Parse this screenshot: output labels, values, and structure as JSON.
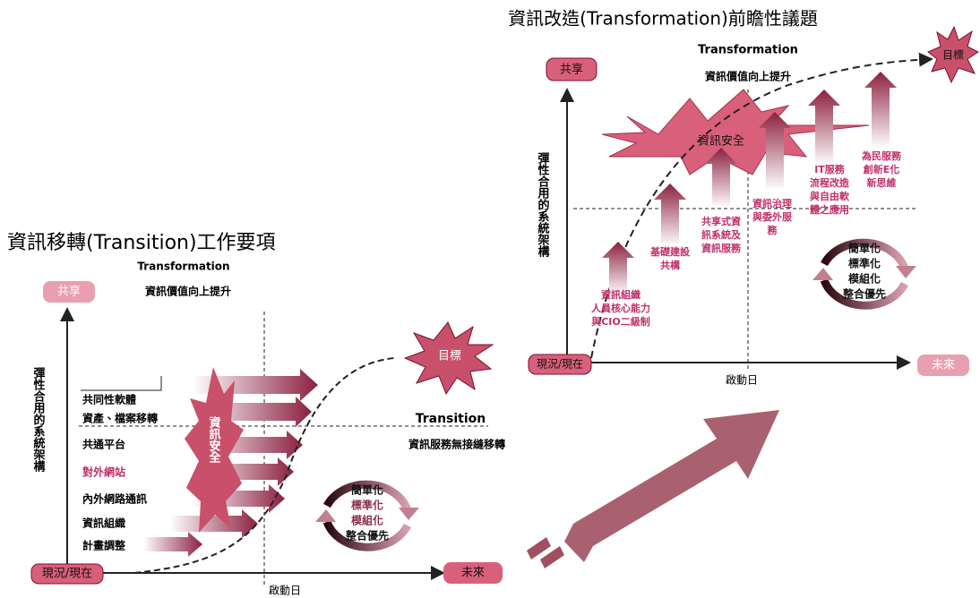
{
  "left": {
    "title": "資訊移轉(Transition)工作要項",
    "transformation": "Transformation",
    "transformation_sub": "資訊價值向上提升",
    "top_label": "共享",
    "y_axis": "彈性合用的系統架構",
    "items": [
      "共同性軟體",
      "資產、檔案移轉",
      "共通平台",
      "對外網站",
      "內外網路通訊",
      "資訊組織",
      "計畫調整"
    ],
    "security": "資訊安全",
    "goal": "目標",
    "transition": "Transition",
    "transition_sub": "資訊服務無接縫移轉",
    "cycle": [
      "簡單化",
      "標準化",
      "模組化",
      "整合優先"
    ],
    "origin": "現況/現在",
    "future": "未來",
    "start_day": "啟動日"
  },
  "right": {
    "title": "資訊改造(Transformation)前瞻性議題",
    "transformation": "Transformation",
    "transformation_sub": "資訊價值向上提升",
    "top_label": "共享",
    "y_axis": "彈性合用的系統架構",
    "goal": "目標",
    "security": "資訊安全",
    "issues": [
      {
        "lines": [
          "資訊組織",
          "人員核心能力",
          "與CIO二級制"
        ]
      },
      {
        "lines": [
          "基礎建設",
          "共構"
        ]
      },
      {
        "lines": [
          "共享式資",
          "訊系統及",
          "資訊服務"
        ]
      },
      {
        "lines": [
          "資訊治理",
          "與委外服",
          "務"
        ]
      },
      {
        "lines": [
          "IT服務",
          "流程改造",
          "與自由軟",
          "體之應用"
        ]
      },
      {
        "lines": [
          "為民服務",
          "創新E化",
          "新思維"
        ]
      }
    ],
    "cycle": [
      "簡單化",
      "標準化",
      "模組化",
      "整合優先"
    ],
    "origin": "現況/現在",
    "future": "未來",
    "start_day": "啟動日"
  }
}
